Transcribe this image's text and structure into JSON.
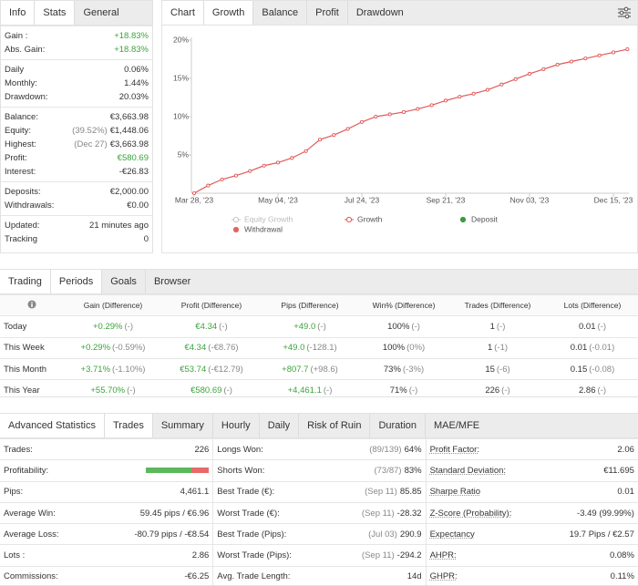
{
  "left_panel": {
    "title": "Info",
    "tabs": [
      "Stats",
      "General"
    ],
    "active_tab": 0,
    "groups": [
      [
        {
          "label": "Gain :",
          "value": "+18.83%",
          "color": "#3ca33c"
        },
        {
          "label": "Abs. Gain:",
          "value": "+18.83%",
          "color": "#3ca33c"
        }
      ],
      [
        {
          "label": "Daily",
          "value": "0.06%"
        },
        {
          "label": "Monthly:",
          "value": "1.44%"
        },
        {
          "label": "Drawdown:",
          "value": "20.03%"
        }
      ],
      [
        {
          "label": "Balance:",
          "value": "€3,663.98"
        },
        {
          "label": "Equity:",
          "note": "(39.52%)",
          "value": "€1,448.06"
        },
        {
          "label": "Highest:",
          "note": "(Dec 27)",
          "value": "€3,663.98"
        },
        {
          "label": "Profit:",
          "value": "€580.69",
          "color": "#3ca33c"
        },
        {
          "label": "Interest:",
          "value": "-€26.83"
        }
      ],
      [
        {
          "label": "Deposits:",
          "value": "€2,000.00"
        },
        {
          "label": "Withdrawals:",
          "value": "€0.00"
        }
      ],
      [
        {
          "label": "Updated:",
          "value": "21 minutes ago"
        },
        {
          "label": "Tracking",
          "value": "0"
        }
      ]
    ]
  },
  "chart_panel": {
    "title": "Chart",
    "tabs": [
      "Growth",
      "Balance",
      "Profit",
      "Drawdown"
    ],
    "active_tab": 0,
    "chart": {
      "type": "line",
      "categories": [
        "Mar 28, '23",
        null,
        null,
        null,
        null,
        null,
        "May 04, '23",
        null,
        null,
        null,
        null,
        null,
        "Jul 24, '23",
        null,
        null,
        null,
        null,
        null,
        "Sep 21, '23",
        null,
        null,
        null,
        null,
        null,
        "Nov 03, '23",
        null,
        null,
        null,
        null,
        null,
        "Dec 15, '23",
        null
      ],
      "series": [
        {
          "name": "Equity Growth",
          "color": "#c8c8c8",
          "style": "line"
        },
        {
          "name": "Growth",
          "color": "#e05a5a",
          "style": "line",
          "values": [
            0,
            1.0,
            1.8,
            2.3,
            2.9,
            3.6,
            4.0,
            4.6,
            5.5,
            7.0,
            7.6,
            8.4,
            9.3,
            10.0,
            10.3,
            10.6,
            11.0,
            11.5,
            12.1,
            12.6,
            13.0,
            13.5,
            14.2,
            14.9,
            15.6,
            16.2,
            16.8,
            17.2,
            17.6,
            18.0,
            18.4,
            18.8
          ]
        },
        {
          "name": "Deposit",
          "color": "#3c9b3c",
          "style": "dot"
        },
        {
          "name": "Withdrawal",
          "color": "#e06666",
          "style": "dot"
        }
      ],
      "ylim": [
        0,
        20
      ],
      "yticks": [
        {
          "value": 5,
          "label": "5%"
        },
        {
          "value": 10,
          "label": "10%"
        },
        {
          "value": 15,
          "label": "15%"
        },
        {
          "value": 20,
          "label": "20%"
        }
      ],
      "grid": false
    }
  },
  "trading": {
    "title": "Trading",
    "tabs": [
      "Periods",
      "Goals",
      "Browser"
    ],
    "active_tab": 0,
    "columns": [
      {
        "label": "Gain (Difference)",
        "color": "#3ca33c"
      },
      {
        "label": "Profit (Difference)",
        "color": "#3ca33c"
      },
      {
        "label": "Pips (Difference)",
        "color": "#3ca33c"
      },
      {
        "label": "Win% (Difference)",
        "color": "#333333"
      },
      {
        "label": "Trades (Difference)",
        "color": "#333333"
      },
      {
        "label": "Lots (Difference)",
        "color": "#333333"
      }
    ],
    "rows": [
      {
        "label": "Today",
        "cells": [
          {
            "value": "+0.29%",
            "diff": "(-)"
          },
          {
            "value": "€4.34",
            "diff": "(-)"
          },
          {
            "value": "+49.0",
            "diff": "(-)"
          },
          {
            "value": "100%",
            "diff": "(-)"
          },
          {
            "value": "1",
            "diff": "(-)"
          },
          {
            "value": "0.01",
            "diff": "(-)"
          }
        ]
      },
      {
        "label": "This Week",
        "cells": [
          {
            "value": "+0.29%",
            "diff": "(-0.59%)"
          },
          {
            "value": "€4.34",
            "diff": "(-€8.76)"
          },
          {
            "value": "+49.0",
            "diff": "(-128.1)"
          },
          {
            "value": "100%",
            "diff": "(0%)"
          },
          {
            "value": "1",
            "diff": "(-1)"
          },
          {
            "value": "0.01",
            "diff": "(-0.01)"
          }
        ]
      },
      {
        "label": "This Month",
        "cells": [
          {
            "value": "+3.71%",
            "diff": "(-1.10%)"
          },
          {
            "value": "€53.74",
            "diff": "(-€12.79)"
          },
          {
            "value": "+807.7",
            "diff": "(+98.6)"
          },
          {
            "value": "73%",
            "diff": "(-3%)"
          },
          {
            "value": "15",
            "diff": "(-6)"
          },
          {
            "value": "0.15",
            "diff": "(-0.08)"
          }
        ]
      },
      {
        "label": "This Year",
        "cells": [
          {
            "value": "+55.70%",
            "diff": "(-)"
          },
          {
            "value": "€580.69",
            "diff": "(-)"
          },
          {
            "value": "+4,461.1",
            "diff": "(-)"
          },
          {
            "value": "71%",
            "diff": "(-)"
          },
          {
            "value": "226",
            "diff": "(-)"
          },
          {
            "value": "2.86",
            "diff": "(-)"
          }
        ]
      }
    ]
  },
  "advanced": {
    "title": "Advanced Statistics",
    "tabs": [
      "Trades",
      "Summary",
      "Hourly",
      "Daily",
      "Risk of Ruin",
      "Duration",
      "MAE/MFE"
    ],
    "active_tab": 0,
    "columns": [
      [
        {
          "label": "Trades:",
          "value": "226"
        },
        {
          "label": "Profitability:",
          "bar": [
            72,
            28
          ],
          "bar_colors": [
            "#5cb85c",
            "#e66a6a"
          ]
        },
        {
          "label": "Pips:",
          "value": "4,461.1"
        },
        {
          "label": "Average Win:",
          "value": "59.45 pips / €6.96"
        },
        {
          "label": "Average Loss:",
          "value": "-80.79 pips / -€8.54"
        },
        {
          "label": "Lots :",
          "value": "2.86"
        },
        {
          "label": "Commissions:",
          "value": "-€6.25"
        }
      ],
      [
        {
          "label": "Longs Won:",
          "note": "(89/139)",
          "value": "64%"
        },
        {
          "label": "Shorts Won:",
          "note": "(73/87)",
          "value": "83%"
        },
        {
          "label": "Best Trade (€):",
          "note": "(Sep 11)",
          "value": "85.85"
        },
        {
          "label": "Worst Trade (€):",
          "note": "(Sep 11)",
          "value": "-28.32"
        },
        {
          "label": "Best Trade (Pips):",
          "note": "(Jul 03)",
          "value": "290.9"
        },
        {
          "label": "Worst Trade (Pips):",
          "note": "(Sep 11)",
          "value": "-294.2"
        },
        {
          "label": "Avg. Trade Length:",
          "value": "14d"
        }
      ],
      [
        {
          "label": "Profit Factor:",
          "value": "2.06"
        },
        {
          "label": "Standard Deviation:",
          "value": "€11.695"
        },
        {
          "label": "Sharpe Ratio",
          "value": "0.01"
        },
        {
          "label": "Z-Score (Probability):",
          "value": "-3.49 (99.99%)"
        },
        {
          "label": "Expectancy",
          "value": "19.7 Pips / €2.57"
        },
        {
          "label": "AHPR:",
          "value": "0.08%"
        },
        {
          "label": "GHPR:",
          "value": "0.11%"
        }
      ]
    ]
  }
}
